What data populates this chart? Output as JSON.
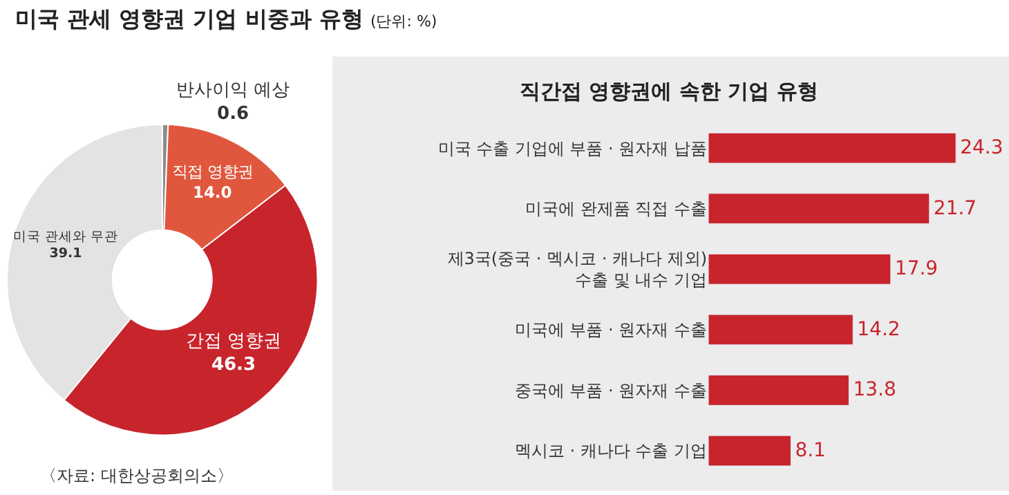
{
  "chart_data": [
    {
      "type": "donut",
      "title": "미국 관세 영향권 기업 비중과 유형",
      "subtitle": "(단위: %)",
      "categories": [
        "반사이익 예상",
        "직접 영향권",
        "간접 영향권",
        "미국 관세와 무관"
      ],
      "values": [
        0.6,
        14.0,
        46.3,
        39.1
      ],
      "value_labels": [
        "0.6",
        "14.0",
        "46.3",
        "39.1"
      ],
      "colors": [
        "#8c8c8c",
        "#e0573d",
        "#c8242c",
        "#e3e3e3"
      ],
      "annotations": [
        "〈자료: 대한상공회의소〉"
      ]
    },
    {
      "type": "bar",
      "orientation": "horizontal",
      "title": "직간접 영향권에 속한 기업 유형",
      "categories": [
        "미국 수출 기업에 부품 · 원자재 납품",
        "미국에 완제품 직접 수출",
        "제3국(중국 · 멕시코 · 캐나다 제외)\n수출 및 내수 기업",
        "미국에 부품 · 원자재 수출",
        "중국에 부품 · 원자재 수출",
        "멕시코 · 캐나다 수출 기업"
      ],
      "values": [
        24.3,
        21.7,
        17.9,
        14.2,
        13.8,
        8.1
      ],
      "color": "#c8242c",
      "data_labels": true
    }
  ]
}
